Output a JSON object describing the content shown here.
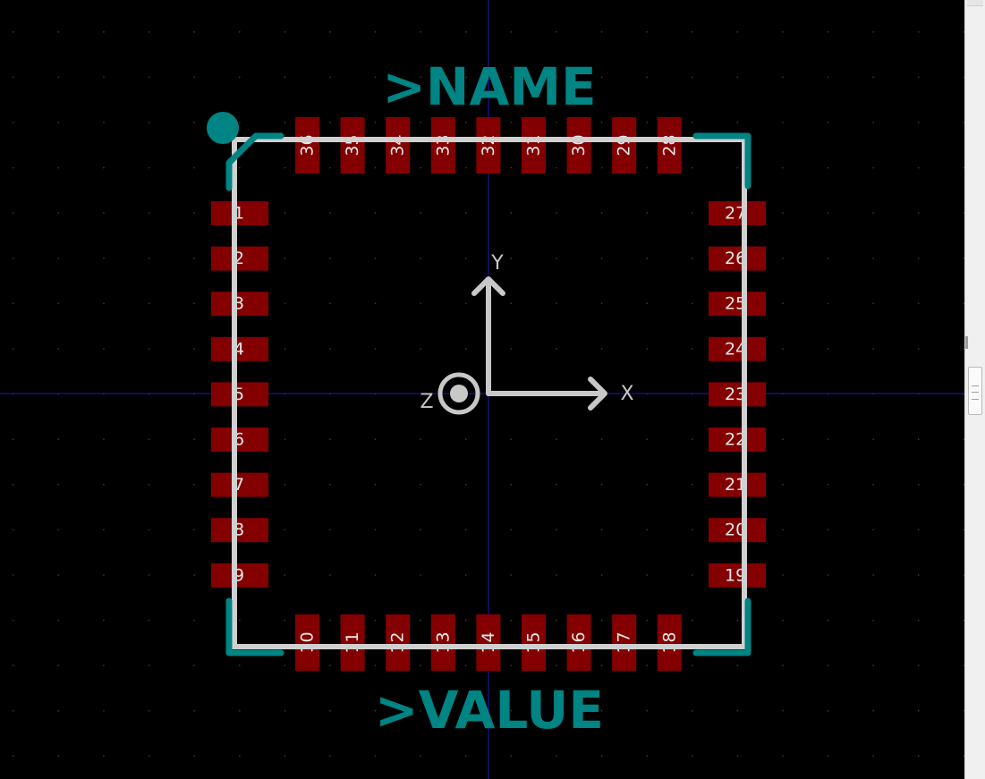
{
  "editor": {
    "name_field": ">NAME",
    "value_field": ">VALUE",
    "axes": {
      "x": "X",
      "y": "Y",
      "z": "Z"
    }
  },
  "pads": {
    "left": [
      "1",
      "2",
      "3",
      "4",
      "5",
      "6",
      "7",
      "8",
      "9"
    ],
    "bottom": [
      "10",
      "11",
      "12",
      "13",
      "14",
      "15",
      "16",
      "17",
      "18"
    ],
    "right": [
      "27",
      "26",
      "25",
      "24",
      "23",
      "22",
      "21",
      "20",
      "19"
    ],
    "top": [
      "36",
      "35",
      "34",
      "33",
      "32",
      "31",
      "30",
      "29",
      "28"
    ]
  },
  "colors": {
    "background": "#000000",
    "grid_dot": "#3a3a3a",
    "crosshair": "#1c1cbf",
    "pad": "#840000",
    "pad_label": "#e8e8e8",
    "silkscreen": "#d0d0d0",
    "outline": "#008484",
    "text": "#008484",
    "axis": "#c8c8c8"
  }
}
